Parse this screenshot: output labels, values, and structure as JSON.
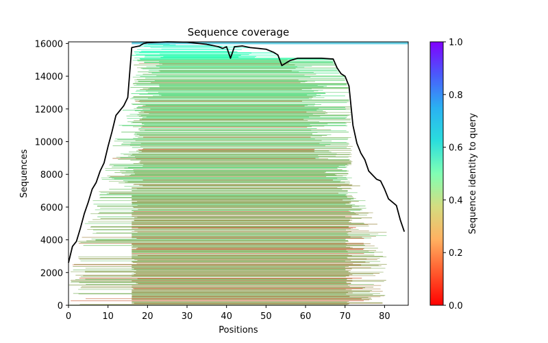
{
  "chart_data": {
    "type": "heatmap",
    "title": "Sequence coverage",
    "xlabel": "Positions",
    "ylabel": "Sequences",
    "xlim": [
      0,
      86
    ],
    "ylim": [
      0,
      16100
    ],
    "x_ticks": [
      0,
      10,
      20,
      30,
      40,
      50,
      60,
      70,
      80
    ],
    "y_ticks": [
      0,
      2000,
      4000,
      6000,
      8000,
      10000,
      12000,
      14000,
      16000
    ],
    "colorbar": {
      "label": "Sequence identity to query",
      "range": [
        0,
        1
      ],
      "ticks": [
        0.0,
        0.2,
        0.4,
        0.6,
        0.8,
        1.0
      ],
      "tick_labels": [
        "0.0",
        "0.2",
        "0.4",
        "0.6",
        "0.8",
        "1.0"
      ],
      "colormap": "rainbow_r"
    },
    "coverage_line": {
      "name": "coverage",
      "color": "#000000",
      "x": [
        0,
        1,
        2,
        3,
        4,
        5,
        6,
        7,
        8,
        9,
        10,
        11,
        12,
        13,
        14,
        15,
        16,
        17,
        18,
        19,
        20,
        25,
        30,
        35,
        38,
        39,
        40,
        41,
        42,
        44,
        46,
        48,
        50,
        52,
        53,
        54,
        56,
        58,
        60,
        64,
        67,
        68,
        69,
        70,
        71,
        72,
        73,
        74,
        75,
        76,
        78,
        79,
        80,
        81,
        82,
        83,
        84,
        85
      ],
      "y": [
        2600,
        3600,
        3900,
        4700,
        5600,
        6300,
        7100,
        7500,
        8200,
        8700,
        9700,
        10600,
        11600,
        11900,
        12200,
        12700,
        15750,
        15800,
        15850,
        16000,
        16050,
        16100,
        16080,
        15950,
        15800,
        15700,
        15800,
        15100,
        15800,
        15850,
        15750,
        15700,
        15650,
        15450,
        15300,
        14650,
        14950,
        15100,
        15100,
        15100,
        15050,
        14500,
        14150,
        14000,
        13400,
        11000,
        9900,
        9300,
        8900,
        8200,
        7700,
        7600,
        7100,
        6500,
        6300,
        6100,
        5200,
        4500
      ]
    }
  }
}
